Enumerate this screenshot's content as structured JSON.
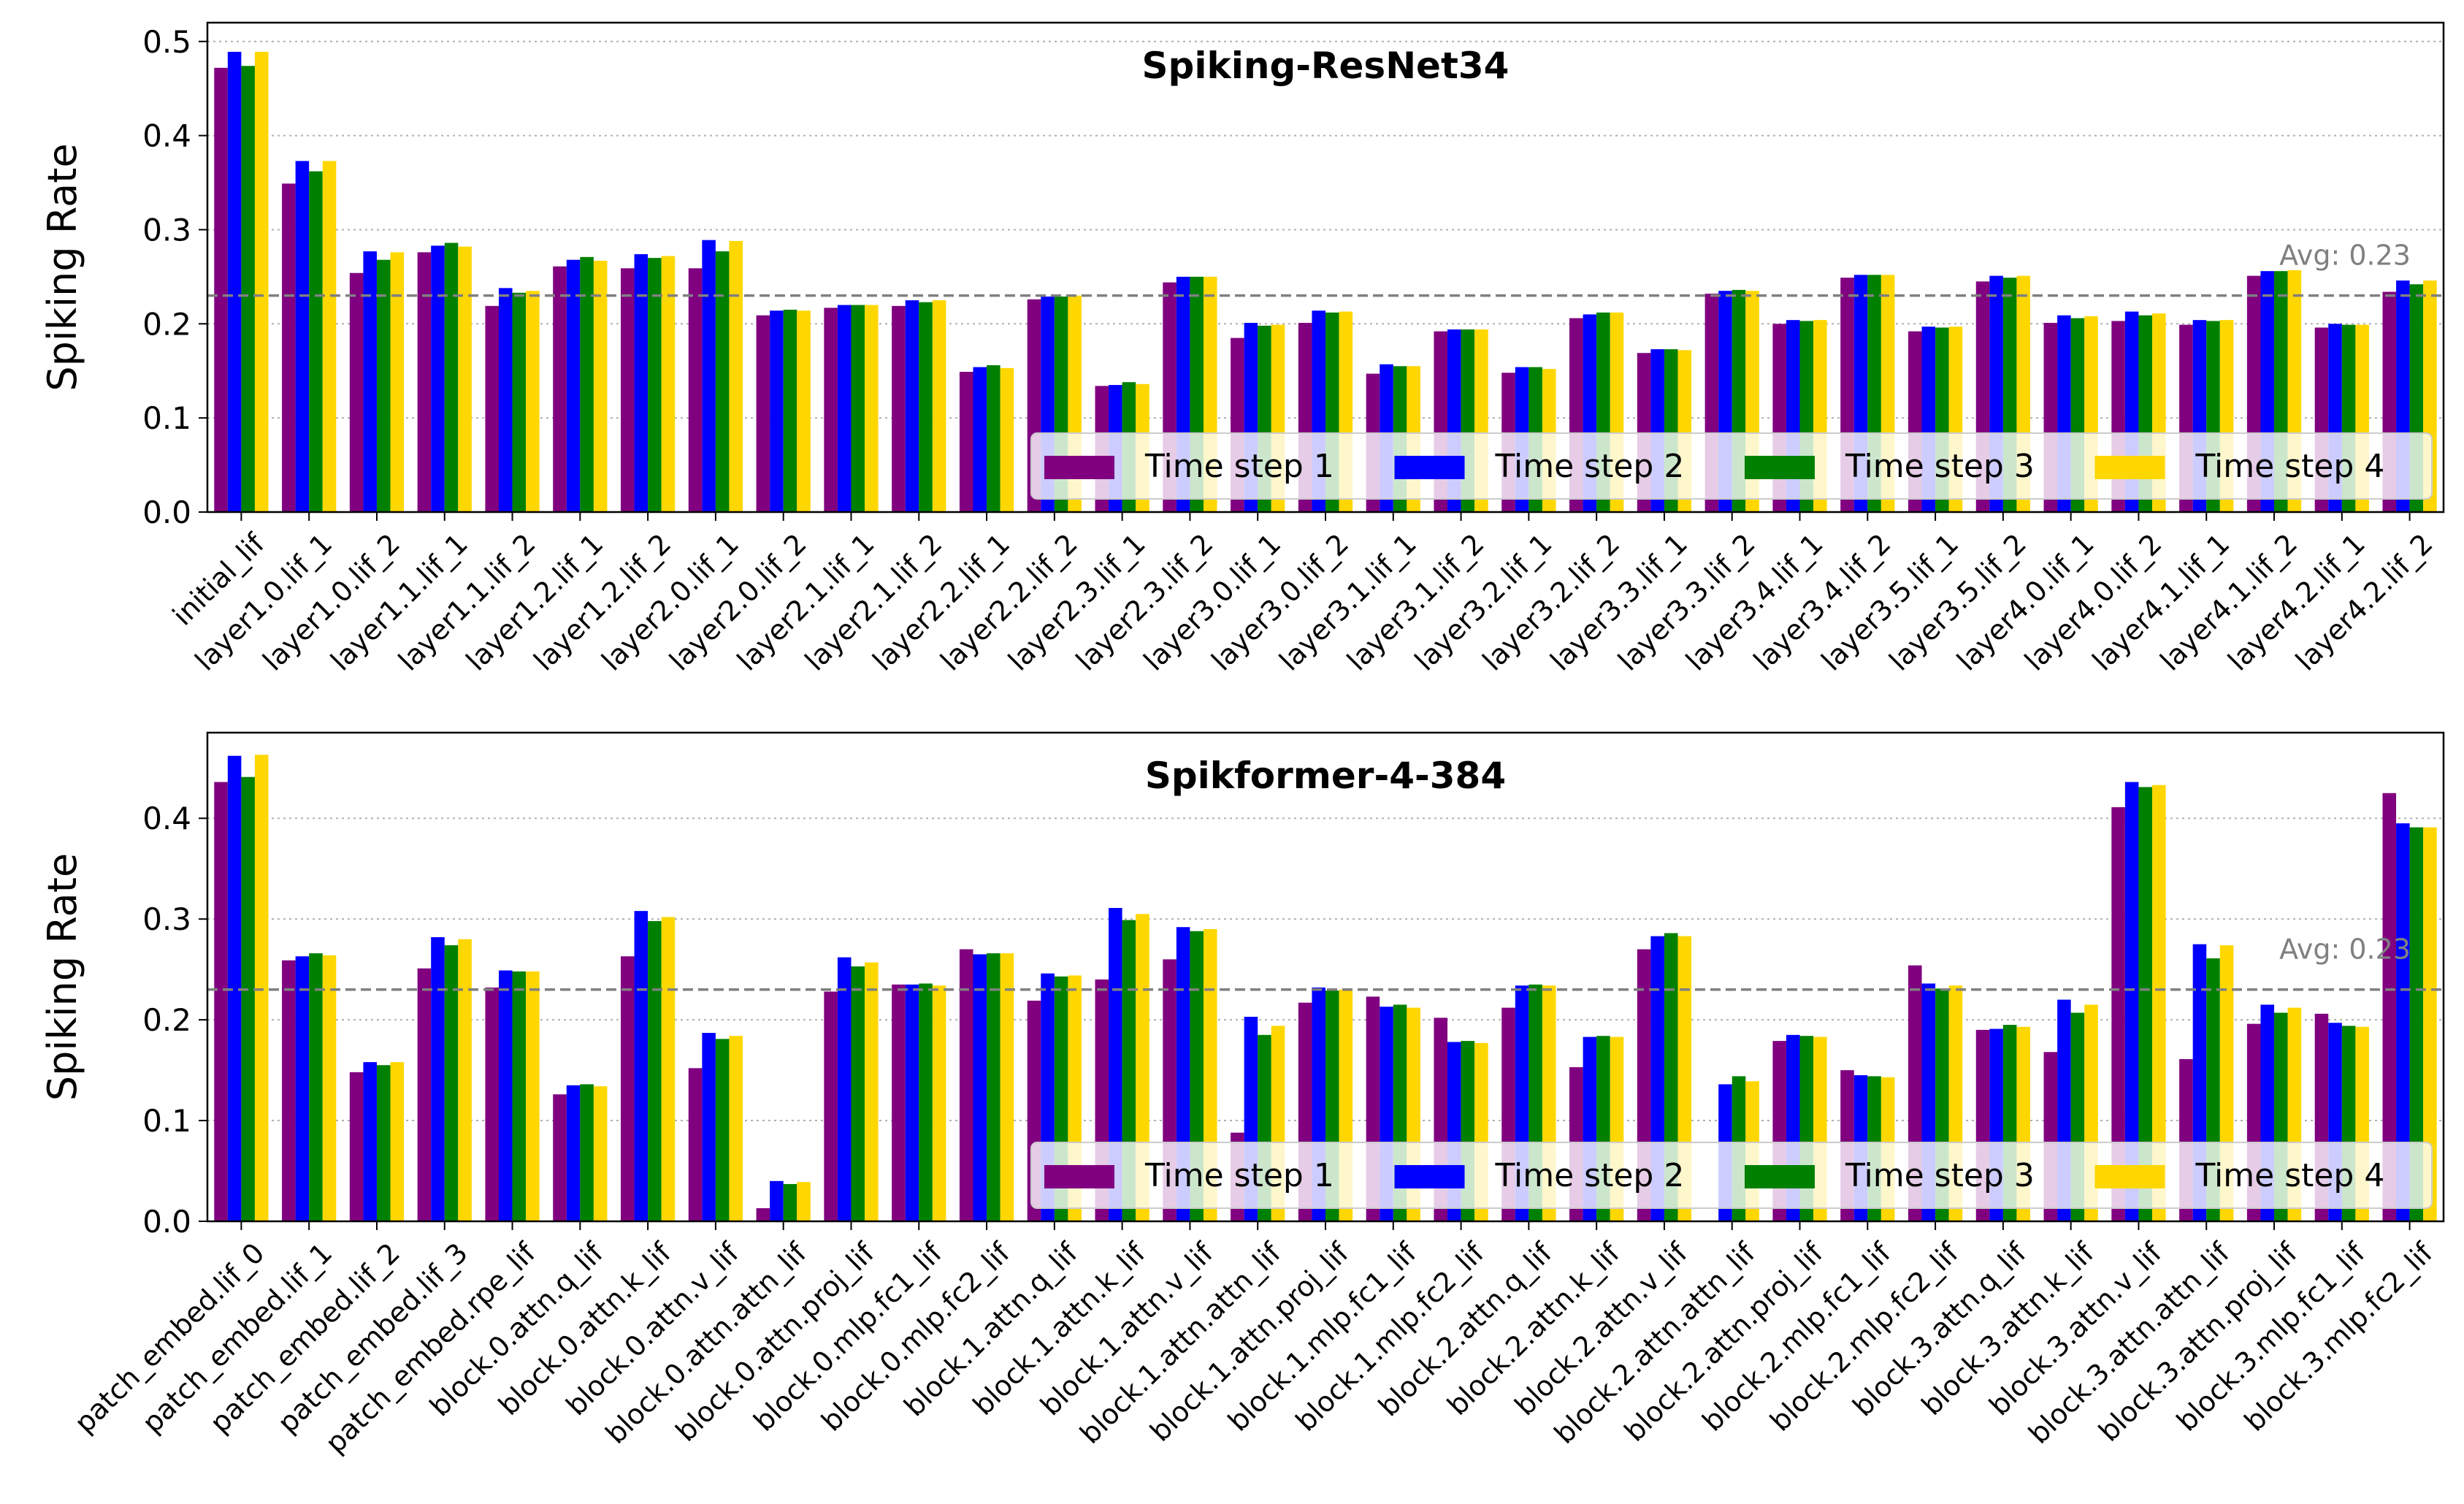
{
  "legend_labels": [
    "Time step 1",
    "Time step 2",
    "Time step 3",
    "Time step 4"
  ],
  "series_colors": [
    "#800080",
    "#0000ff",
    "#008000",
    "#ffd700"
  ],
  "avg_line_color": "#808080",
  "grid_color": "#b0b0b0",
  "chart_data": [
    {
      "type": "bar",
      "title": "Spiking-ResNet34",
      "ylabel": "Spiking Rate",
      "ylim": [
        0,
        0.52
      ],
      "yticks": [
        0.0,
        0.1,
        0.2,
        0.3,
        0.4,
        0.5
      ],
      "ytick_labels": [
        "0.0",
        "0.1",
        "0.2",
        "0.3",
        "0.4",
        "0.5"
      ],
      "grid": "horizontal dotted",
      "legend_position": "lower-right",
      "average": {
        "value": 0.23,
        "label": "Avg: 0.23"
      },
      "categories": [
        "initial_lif",
        "layer1.0.lif_1",
        "layer1.0.lif_2",
        "layer1.1.lif_1",
        "layer1.1.lif_2",
        "layer1.2.lif_1",
        "layer1.2.lif_2",
        "layer2.0.lif_1",
        "layer2.0.lif_2",
        "layer2.1.lif_1",
        "layer2.1.lif_2",
        "layer2.2.lif_1",
        "layer2.2.lif_2",
        "layer2.3.lif_1",
        "layer2.3.lif_2",
        "layer3.0.lif_1",
        "layer3.0.lif_2",
        "layer3.1.lif_1",
        "layer3.1.lif_2",
        "layer3.2.lif_1",
        "layer3.2.lif_2",
        "layer3.3.lif_1",
        "layer3.3.lif_2",
        "layer3.4.lif_1",
        "layer3.4.lif_2",
        "layer3.5.lif_1",
        "layer3.5.lif_2",
        "layer4.0.lif_1",
        "layer4.0.lif_2",
        "layer4.1.lif_1",
        "layer4.1.lif_2",
        "layer4.2.lif_1",
        "layer4.2.lif_2"
      ],
      "series": [
        {
          "name": "Time step 1",
          "values": [
            0.472,
            0.349,
            0.254,
            0.276,
            0.219,
            0.261,
            0.259,
            0.259,
            0.209,
            0.217,
            0.219,
            0.149,
            0.226,
            0.134,
            0.244,
            0.185,
            0.201,
            0.147,
            0.192,
            0.148,
            0.206,
            0.169,
            0.232,
            0.2,
            0.249,
            0.192,
            0.245,
            0.201,
            0.203,
            0.199,
            0.251,
            0.196,
            0.234
          ]
        },
        {
          "name": "Time step 2",
          "values": [
            0.489,
            0.373,
            0.277,
            0.283,
            0.238,
            0.268,
            0.274,
            0.289,
            0.214,
            0.22,
            0.225,
            0.154,
            0.229,
            0.135,
            0.25,
            0.201,
            0.214,
            0.157,
            0.194,
            0.154,
            0.21,
            0.173,
            0.235,
            0.204,
            0.252,
            0.197,
            0.251,
            0.209,
            0.213,
            0.204,
            0.256,
            0.2,
            0.246
          ]
        },
        {
          "name": "Time step 3",
          "values": [
            0.474,
            0.362,
            0.268,
            0.286,
            0.233,
            0.271,
            0.27,
            0.277,
            0.215,
            0.22,
            0.223,
            0.156,
            0.229,
            0.138,
            0.25,
            0.198,
            0.212,
            0.155,
            0.194,
            0.154,
            0.212,
            0.173,
            0.236,
            0.203,
            0.252,
            0.196,
            0.249,
            0.206,
            0.209,
            0.203,
            0.256,
            0.199,
            0.242
          ]
        },
        {
          "name": "Time step 4",
          "values": [
            0.489,
            0.373,
            0.276,
            0.282,
            0.235,
            0.267,
            0.272,
            0.288,
            0.214,
            0.22,
            0.225,
            0.153,
            0.23,
            0.136,
            0.25,
            0.199,
            0.213,
            0.155,
            0.194,
            0.152,
            0.212,
            0.172,
            0.235,
            0.204,
            0.252,
            0.197,
            0.251,
            0.208,
            0.211,
            0.204,
            0.257,
            0.199,
            0.246
          ]
        }
      ]
    },
    {
      "type": "bar",
      "title": "Spikformer-4-384",
      "ylabel": "Spiking Rate",
      "ylim": [
        0,
        0.485
      ],
      "yticks": [
        0.0,
        0.1,
        0.2,
        0.3,
        0.4
      ],
      "ytick_labels": [
        "0.0",
        "0.1",
        "0.2",
        "0.3",
        "0.4"
      ],
      "grid": "horizontal dotted",
      "legend_position": "lower-right",
      "average": {
        "value": 0.23,
        "label": "Avg: 0.23"
      },
      "categories": [
        "patch_embed.lif_0",
        "patch_embed.lif_1",
        "patch_embed.lif_2",
        "patch_embed.lif_3",
        "patch_embed.rpe_lif",
        "block.0.attn.q_lif",
        "block.0.attn.k_lif",
        "block.0.attn.v_lif",
        "block.0.attn.attn_lif",
        "block.0.attn.proj_lif",
        "block.0.mlp.fc1_lif",
        "block.0.mlp.fc2_lif",
        "block.1.attn.q_lif",
        "block.1.attn.k_lif",
        "block.1.attn.v_lif",
        "block.1.attn.attn_lif",
        "block.1.attn.proj_lif",
        "block.1.mlp.fc1_lif",
        "block.1.mlp.fc2_lif",
        "block.2.attn.q_lif",
        "block.2.attn.k_lif",
        "block.2.attn.v_lif",
        "block.2.attn.attn_lif",
        "block.2.attn.proj_lif",
        "block.2.mlp.fc1_lif",
        "block.2.mlp.fc2_lif",
        "block.3.attn.q_lif",
        "block.3.attn.k_lif",
        "block.3.attn.v_lif",
        "block.3.attn.attn_lif",
        "block.3.attn.proj_lif",
        "block.3.mlp.fc1_lif",
        "block.3.mlp.fc2_lif"
      ],
      "series": [
        {
          "name": "Time step 1",
          "values": [
            0.436,
            0.259,
            0.148,
            0.251,
            0.232,
            0.126,
            0.263,
            0.152,
            0.013,
            0.228,
            0.235,
            0.27,
            0.219,
            0.24,
            0.26,
            0.088,
            0.217,
            0.223,
            0.202,
            0.212,
            0.153,
            0.27,
            0.0,
            0.179,
            0.15,
            0.254,
            0.19,
            0.168,
            0.411,
            0.161,
            0.196,
            0.206,
            0.425
          ]
        },
        {
          "name": "Time step 2",
          "values": [
            0.462,
            0.263,
            0.158,
            0.282,
            0.249,
            0.135,
            0.308,
            0.187,
            0.04,
            0.262,
            0.235,
            0.265,
            0.246,
            0.311,
            0.292,
            0.203,
            0.232,
            0.213,
            0.178,
            0.234,
            0.183,
            0.283,
            0.136,
            0.185,
            0.145,
            0.236,
            0.191,
            0.22,
            0.436,
            0.275,
            0.215,
            0.197,
            0.395
          ]
        },
        {
          "name": "Time step 3",
          "values": [
            0.441,
            0.266,
            0.155,
            0.274,
            0.248,
            0.136,
            0.298,
            0.181,
            0.037,
            0.253,
            0.236,
            0.266,
            0.243,
            0.299,
            0.288,
            0.185,
            0.229,
            0.215,
            0.179,
            0.235,
            0.184,
            0.286,
            0.144,
            0.184,
            0.144,
            0.231,
            0.195,
            0.207,
            0.431,
            0.261,
            0.207,
            0.194,
            0.391
          ]
        },
        {
          "name": "Time step 4",
          "values": [
            0.463,
            0.264,
            0.158,
            0.28,
            0.248,
            0.134,
            0.302,
            0.184,
            0.039,
            0.257,
            0.234,
            0.266,
            0.244,
            0.305,
            0.29,
            0.194,
            0.23,
            0.212,
            0.177,
            0.234,
            0.183,
            0.283,
            0.139,
            0.183,
            0.143,
            0.234,
            0.193,
            0.215,
            0.433,
            0.274,
            0.212,
            0.193,
            0.391
          ]
        }
      ]
    }
  ]
}
